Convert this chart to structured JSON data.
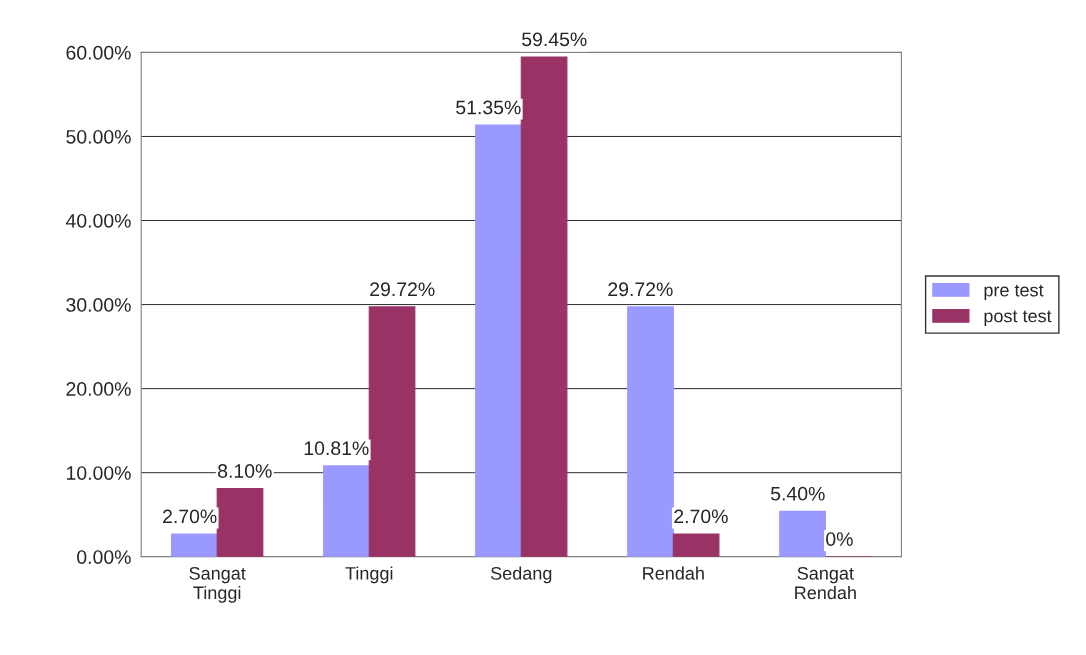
{
  "chart_data": {
    "type": "bar",
    "categories": [
      "Sangat\nTinggi",
      "Tinggi",
      "Sedang",
      "Rendah",
      "Sangat\nRendah"
    ],
    "series": [
      {
        "name": "pre test",
        "color": "#9999ff",
        "values": [
          2.7,
          10.81,
          51.35,
          29.72,
          5.4
        ],
        "value_labels": [
          "2.70%",
          "10.81%",
          "51.35%",
          "29.72%",
          "5.40%"
        ]
      },
      {
        "name": "post test",
        "color": "#993366",
        "values": [
          8.1,
          29.72,
          59.45,
          2.7,
          0
        ],
        "value_labels": [
          "8.10%",
          "29.72%",
          "59.45%",
          "2.70%",
          "0%"
        ]
      }
    ],
    "ylim": [
      0,
      60
    ],
    "yticks": [
      {
        "value": 0,
        "label": "0.00%"
      },
      {
        "value": 10,
        "label": "10.00%"
      },
      {
        "value": 20,
        "label": "20.00%"
      },
      {
        "value": 30,
        "label": "30.00%"
      },
      {
        "value": 40,
        "label": "40.00%"
      },
      {
        "value": 50,
        "label": "50.00%"
      },
      {
        "value": 60,
        "label": "60.00%"
      }
    ],
    "grid": "y",
    "legend": "right"
  }
}
